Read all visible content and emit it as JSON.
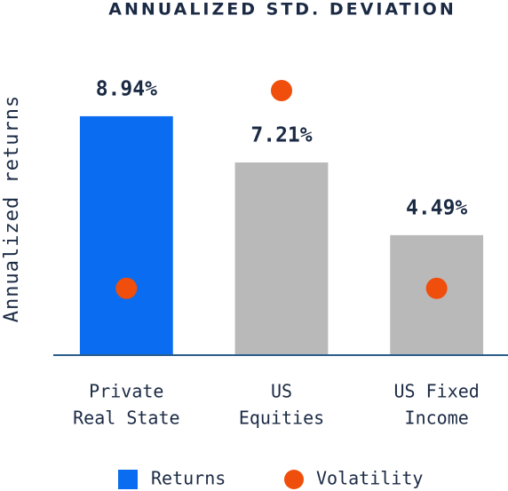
{
  "chart_data": {
    "type": "bar",
    "title": "ANNUALIZED STD. DEVIATION",
    "y_label": "Annualized returns",
    "categories": [
      [
        "Private",
        "Real State"
      ],
      [
        "US",
        "Equities"
      ],
      [
        "US Fixed",
        "Income"
      ]
    ],
    "ylim": [
      0,
      10
    ],
    "series": [
      {
        "name": "Returns",
        "color": "#0a6cf0",
        "colors": [
          "#0a6cf0",
          "#b9b9b9",
          "#b9b9b9"
        ],
        "values": [
          8.94,
          7.21,
          4.49
        ],
        "value_labels": [
          "8.94%",
          "7.21%",
          "4.49%"
        ]
      },
      {
        "name": "Volatility",
        "color": "#f04e0c",
        "values": [
          2.5,
          9.9,
          2.5
        ]
      }
    ]
  }
}
